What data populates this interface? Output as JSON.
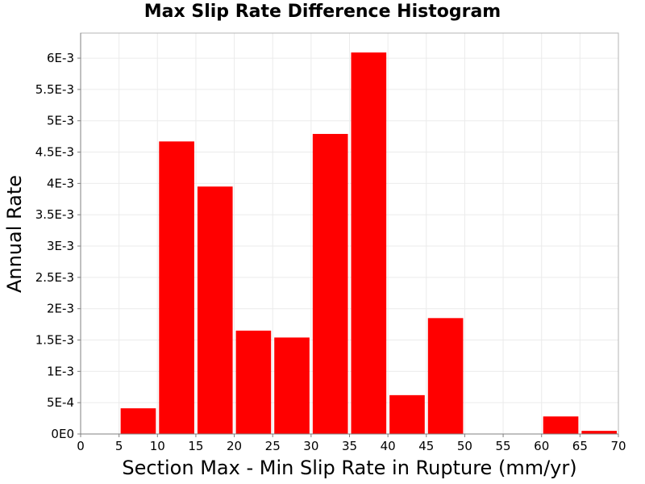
{
  "chart_data": {
    "type": "bar",
    "title": "Max Slip Rate Difference Histogram",
    "xlabel": "Section Max - Min Slip Rate in Rupture (mm/yr)",
    "ylabel": "Annual Rate",
    "xlim": [
      0,
      70
    ],
    "ylim": [
      0,
      0.0064
    ],
    "grid": true,
    "bin_width": 5,
    "bins": [
      {
        "x_start": 0,
        "x_end": 5,
        "value": 0
      },
      {
        "x_start": 5,
        "x_end": 10,
        "value": 0.00041
      },
      {
        "x_start": 10,
        "x_end": 15,
        "value": 0.00467
      },
      {
        "x_start": 15,
        "x_end": 20,
        "value": 0.00395
      },
      {
        "x_start": 20,
        "x_end": 25,
        "value": 0.00165
      },
      {
        "x_start": 25,
        "x_end": 30,
        "value": 0.00154
      },
      {
        "x_start": 30,
        "x_end": 35,
        "value": 0.00479
      },
      {
        "x_start": 35,
        "x_end": 40,
        "value": 0.00609
      },
      {
        "x_start": 40,
        "x_end": 45,
        "value": 0.00062
      },
      {
        "x_start": 45,
        "x_end": 50,
        "value": 0.00185
      },
      {
        "x_start": 50,
        "x_end": 55,
        "value": 0
      },
      {
        "x_start": 55,
        "x_end": 60,
        "value": 0
      },
      {
        "x_start": 60,
        "x_end": 65,
        "value": 0.00028
      },
      {
        "x_start": 65,
        "x_end": 70,
        "value": 5e-05
      }
    ],
    "bar_color": "#ff0000",
    "x_ticks": [
      {
        "value": 0,
        "label": "0"
      },
      {
        "value": 5,
        "label": "5"
      },
      {
        "value": 10,
        "label": "10"
      },
      {
        "value": 15,
        "label": "15"
      },
      {
        "value": 20,
        "label": "20"
      },
      {
        "value": 25,
        "label": "25"
      },
      {
        "value": 30,
        "label": "30"
      },
      {
        "value": 35,
        "label": "35"
      },
      {
        "value": 40,
        "label": "40"
      },
      {
        "value": 45,
        "label": "45"
      },
      {
        "value": 50,
        "label": "50"
      },
      {
        "value": 55,
        "label": "55"
      },
      {
        "value": 60,
        "label": "60"
      },
      {
        "value": 65,
        "label": "65"
      },
      {
        "value": 70,
        "label": "70"
      }
    ],
    "y_ticks": [
      {
        "value": 0,
        "label": "0E0"
      },
      {
        "value": 0.0005,
        "label": "5E-4"
      },
      {
        "value": 0.001,
        "label": "1E-3"
      },
      {
        "value": 0.0015,
        "label": "1.5E-3"
      },
      {
        "value": 0.002,
        "label": "2E-3"
      },
      {
        "value": 0.0025,
        "label": "2.5E-3"
      },
      {
        "value": 0.003,
        "label": "3E-3"
      },
      {
        "value": 0.0035,
        "label": "3.5E-3"
      },
      {
        "value": 0.004,
        "label": "4E-3"
      },
      {
        "value": 0.0045,
        "label": "4.5E-3"
      },
      {
        "value": 0.005,
        "label": "5E-3"
      },
      {
        "value": 0.0055,
        "label": "5.5E-3"
      },
      {
        "value": 0.006,
        "label": "6E-3"
      }
    ]
  }
}
